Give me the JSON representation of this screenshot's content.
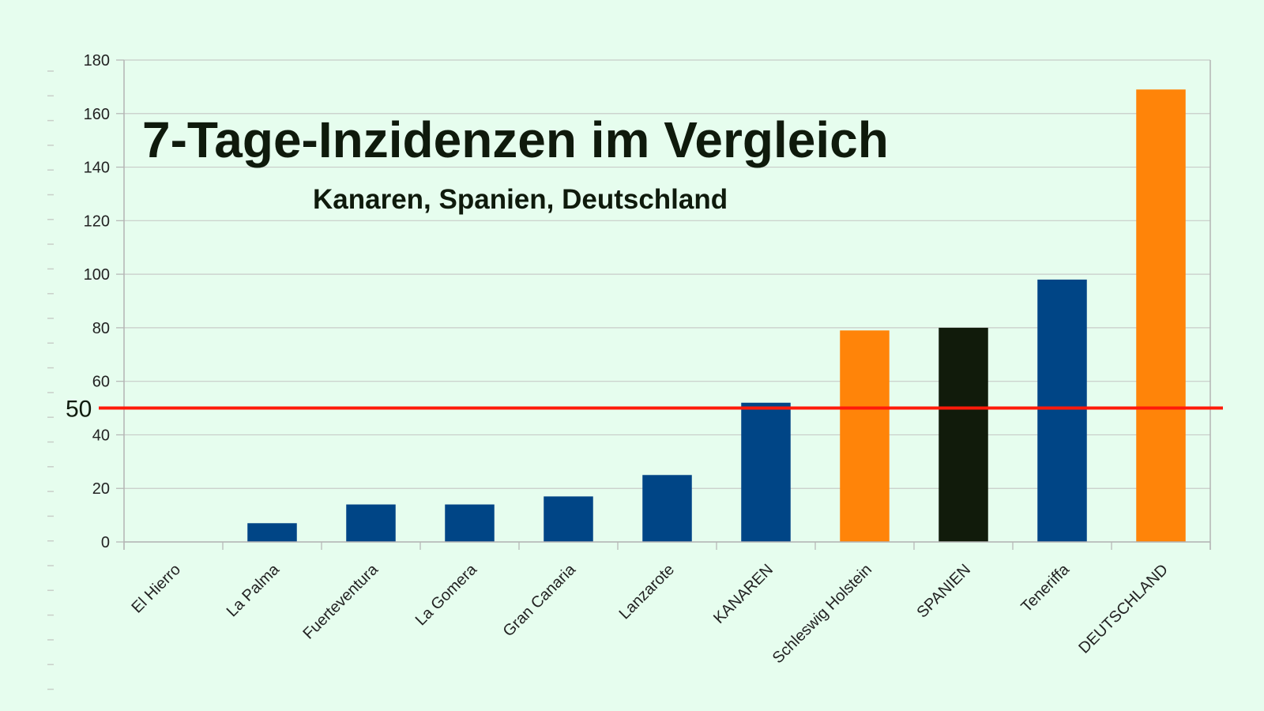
{
  "chart_data": {
    "type": "bar",
    "title": "7-Tage-Inzidenzen im Vergleich",
    "subtitle": "Kanaren, Spanien, Deutschland",
    "categories": [
      "El Hierro",
      "La Palma",
      "Fuerteventura",
      "La Gomera",
      "Gran Canaria",
      "Lanzarote",
      "KANAREN",
      "Schleswig Holstein",
      "SPANIEN",
      "Teneriffa",
      "DEUTSCHLAND"
    ],
    "values": [
      0,
      7,
      14,
      14,
      17,
      25,
      52,
      79,
      80,
      98,
      169
    ],
    "bar_colors": [
      "#004586",
      "#004586",
      "#004586",
      "#004586",
      "#004586",
      "#004586",
      "#004586",
      "#ff8409",
      "#111b0b",
      "#004586",
      "#ff8409"
    ],
    "ylim": [
      0,
      180
    ],
    "yticks": [
      0,
      20,
      40,
      60,
      80,
      100,
      120,
      140,
      160,
      180
    ],
    "grid": true,
    "reference_line": {
      "value": 50,
      "label": "50",
      "color": "#ff1a0a"
    },
    "colors": {
      "background": "#e6fdee",
      "grid": "#c8cbc8",
      "axis": "#b4b4b4"
    },
    "xlabel": "",
    "ylabel": ""
  }
}
